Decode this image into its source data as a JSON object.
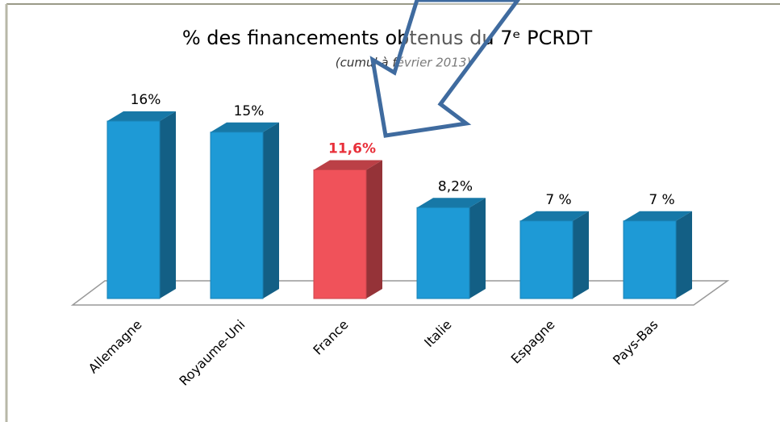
{
  "chart_data": {
    "type": "bar3d",
    "title": "% des financements obtenus du 7ᵉ PCRDT",
    "subtitle": "(cumul à février 2013)",
    "categories": [
      "Allemagne",
      "Royaume-Uni",
      "France",
      "Italie",
      "Espagne",
      "Pays-Bas"
    ],
    "values": [
      16,
      15,
      11.6,
      8.2,
      7,
      7
    ],
    "value_labels": [
      "16%",
      "15%",
      "11,6%",
      "8,2%",
      "7 %",
      "7 %"
    ],
    "colors": [
      "#1e9ad6",
      "#1e9ad6",
      "#f0525a",
      "#1e9ad6",
      "#1e9ad6",
      "#1e9ad6"
    ],
    "value_label_colors": [
      "#000000",
      "#000000",
      "#e8303a",
      "#000000",
      "#000000",
      "#000000"
    ],
    "ylim": [
      0,
      16
    ]
  }
}
